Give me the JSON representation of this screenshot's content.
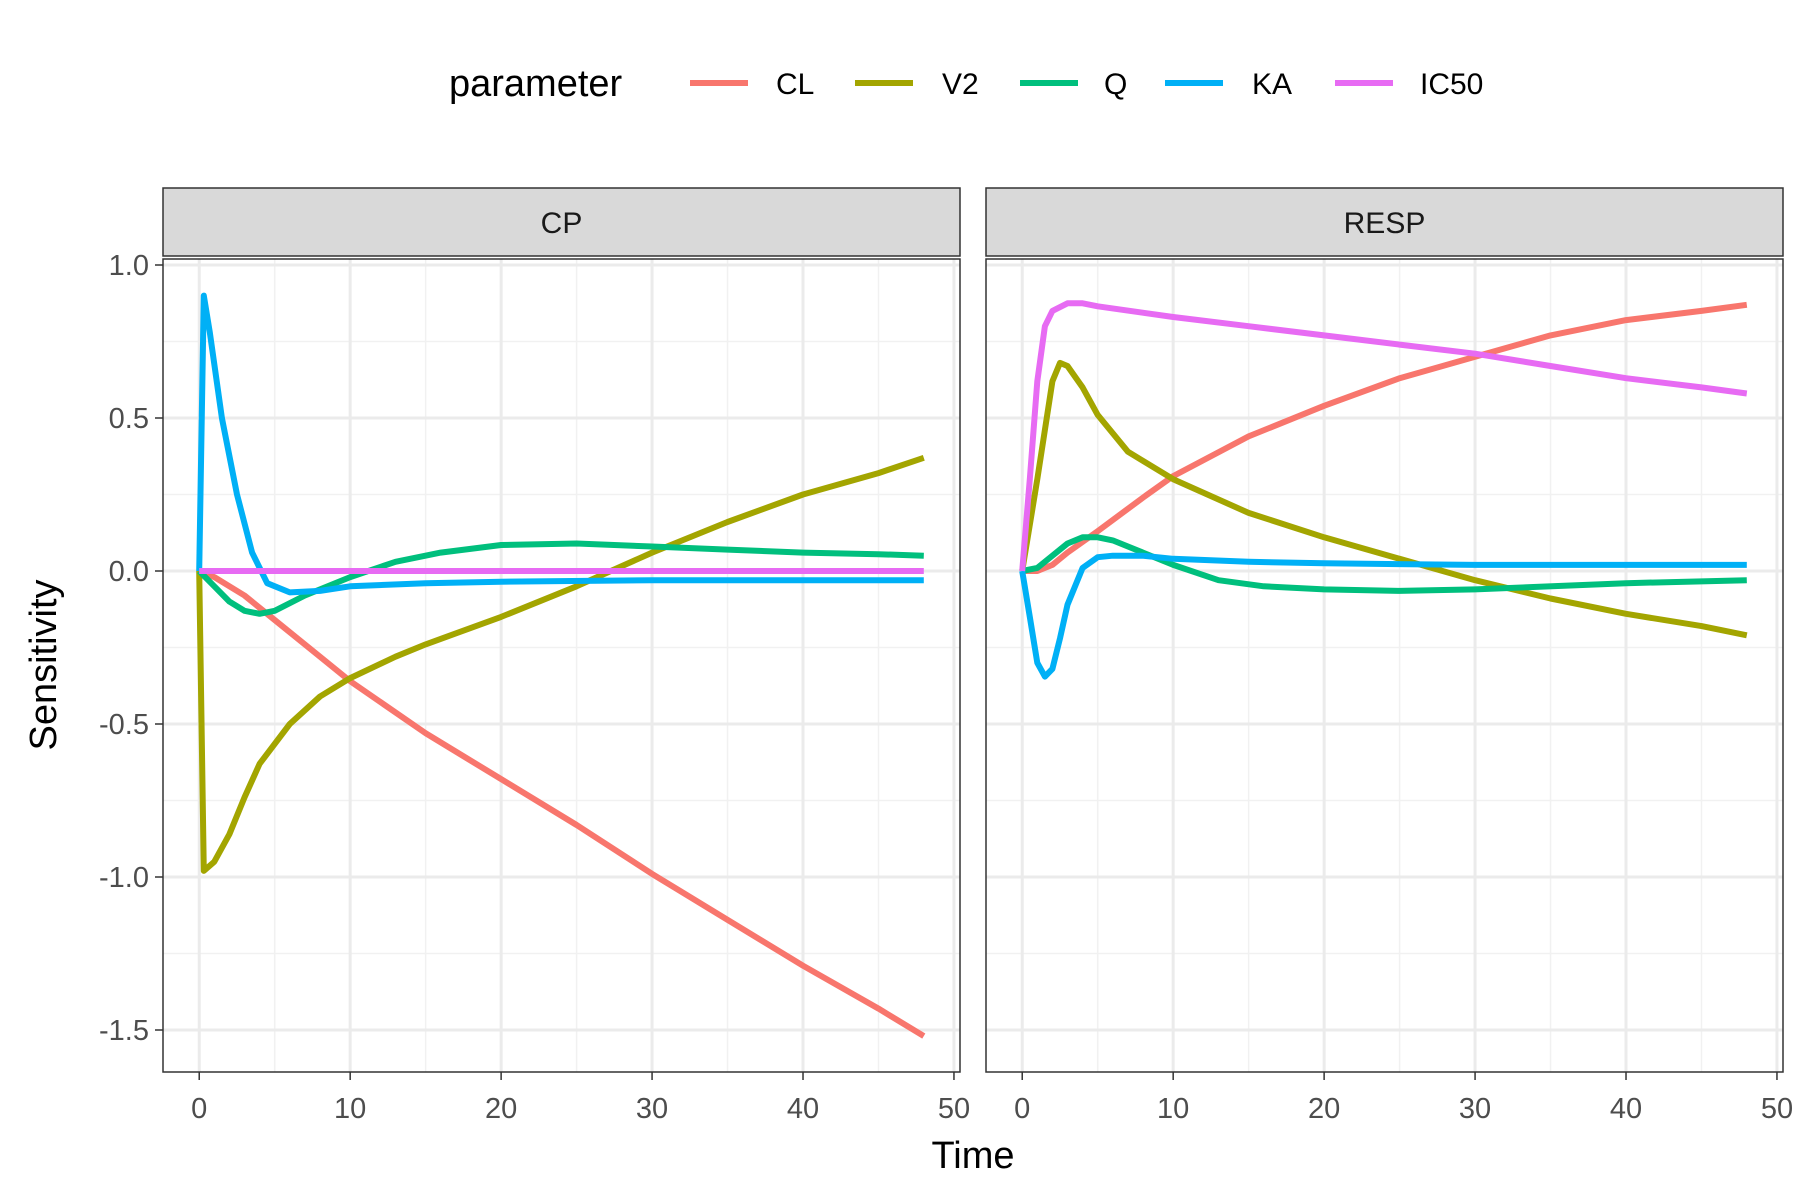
{
  "chart_data": {
    "type": "line",
    "xlabel": "Time",
    "ylabel": "Sensitivity",
    "xlim": [
      -2.4,
      50.4
    ],
    "ylim": [
      -1.63,
      1.0
    ],
    "x_ticks": [
      0,
      10,
      20,
      30,
      40,
      50
    ],
    "x_tick_labels": [
      "0",
      "10",
      "20",
      "30",
      "40",
      "50"
    ],
    "y_ticks": [
      1.0,
      0.5,
      0.0,
      -0.5,
      -1.0,
      -1.5
    ],
    "y_tick_labels": [
      "1.0",
      "0.5",
      "0.0",
      "-0.5",
      "-1.0",
      "-1.5"
    ],
    "grid": true,
    "legend": {
      "title": "parameter",
      "position": "top",
      "entries": [
        {
          "name": "CL",
          "color": "#F8766D"
        },
        {
          "name": "V2",
          "color": "#A3A500"
        },
        {
          "name": "Q",
          "color": "#00BF7D"
        },
        {
          "name": "KA",
          "color": "#00B0F6"
        },
        {
          "name": "IC50",
          "color": "#E76BF3"
        }
      ]
    },
    "panels": [
      {
        "strip": "CP",
        "series": [
          {
            "name": "CL",
            "color": "#F8766D",
            "points": [
              [
                0,
                0
              ],
              [
                1,
                -0.02
              ],
              [
                3,
                -0.08
              ],
              [
                5,
                -0.16
              ],
              [
                8,
                -0.28
              ],
              [
                10,
                -0.36
              ],
              [
                15,
                -0.53
              ],
              [
                20,
                -0.68
              ],
              [
                25,
                -0.83
              ],
              [
                30,
                -0.99
              ],
              [
                35,
                -1.14
              ],
              [
                40,
                -1.29
              ],
              [
                45,
                -1.43
              ],
              [
                48,
                -1.52
              ]
            ]
          },
          {
            "name": "V2",
            "color": "#A3A500",
            "points": [
              [
                0,
                0
              ],
              [
                0.3,
                -0.98
              ],
              [
                1,
                -0.95
              ],
              [
                2,
                -0.86
              ],
              [
                3,
                -0.74
              ],
              [
                4,
                -0.63
              ],
              [
                6,
                -0.5
              ],
              [
                8,
                -0.41
              ],
              [
                10,
                -0.35
              ],
              [
                13,
                -0.28
              ],
              [
                15,
                -0.24
              ],
              [
                20,
                -0.15
              ],
              [
                25,
                -0.05
              ],
              [
                30,
                0.06
              ],
              [
                35,
                0.16
              ],
              [
                40,
                0.25
              ],
              [
                45,
                0.32
              ],
              [
                48,
                0.37
              ]
            ]
          },
          {
            "name": "Q",
            "color": "#00BF7D",
            "points": [
              [
                0,
                0
              ],
              [
                1,
                -0.05
              ],
              [
                2,
                -0.1
              ],
              [
                3,
                -0.13
              ],
              [
                4,
                -0.14
              ],
              [
                5,
                -0.13
              ],
              [
                7,
                -0.08
              ],
              [
                10,
                -0.02
              ],
              [
                13,
                0.03
              ],
              [
                16,
                0.06
              ],
              [
                20,
                0.085
              ],
              [
                25,
                0.09
              ],
              [
                30,
                0.08
              ],
              [
                35,
                0.07
              ],
              [
                40,
                0.06
              ],
              [
                45,
                0.055
              ],
              [
                48,
                0.05
              ]
            ]
          },
          {
            "name": "KA",
            "color": "#00B0F6",
            "points": [
              [
                0,
                0
              ],
              [
                0.3,
                0.9
              ],
              [
                0.7,
                0.78
              ],
              [
                1.5,
                0.5
              ],
              [
                2.5,
                0.25
              ],
              [
                3.5,
                0.06
              ],
              [
                4.5,
                -0.04
              ],
              [
                6,
                -0.07
              ],
              [
                8,
                -0.065
              ],
              [
                10,
                -0.05
              ],
              [
                15,
                -0.04
              ],
              [
                20,
                -0.035
              ],
              [
                30,
                -0.03
              ],
              [
                40,
                -0.03
              ],
              [
                48,
                -0.03
              ]
            ]
          },
          {
            "name": "IC50",
            "color": "#E76BF3",
            "points": [
              [
                0,
                0
              ],
              [
                48,
                0
              ]
            ]
          }
        ]
      },
      {
        "strip": "RESP",
        "series": [
          {
            "name": "CL",
            "color": "#F8766D",
            "points": [
              [
                0,
                0
              ],
              [
                1,
                0
              ],
              [
                2,
                0.02
              ],
              [
                3,
                0.06
              ],
              [
                5,
                0.13
              ],
              [
                8,
                0.24
              ],
              [
                10,
                0.31
              ],
              [
                15,
                0.44
              ],
              [
                20,
                0.54
              ],
              [
                25,
                0.63
              ],
              [
                30,
                0.7
              ],
              [
                35,
                0.77
              ],
              [
                40,
                0.82
              ],
              [
                45,
                0.85
              ],
              [
                48,
                0.87
              ]
            ]
          },
          {
            "name": "V2",
            "color": "#A3A500",
            "points": [
              [
                0,
                0
              ],
              [
                1,
                0.3
              ],
              [
                2,
                0.62
              ],
              [
                2.5,
                0.68
              ],
              [
                3,
                0.67
              ],
              [
                4,
                0.6
              ],
              [
                5,
                0.51
              ],
              [
                7,
                0.39
              ],
              [
                10,
                0.3
              ],
              [
                15,
                0.19
              ],
              [
                20,
                0.11
              ],
              [
                25,
                0.04
              ],
              [
                30,
                -0.03
              ],
              [
                35,
                -0.09
              ],
              [
                40,
                -0.14
              ],
              [
                45,
                -0.18
              ],
              [
                48,
                -0.21
              ]
            ]
          },
          {
            "name": "Q",
            "color": "#00BF7D",
            "points": [
              [
                0,
                0
              ],
              [
                1,
                0.01
              ],
              [
                2,
                0.05
              ],
              [
                3,
                0.09
              ],
              [
                4,
                0.11
              ],
              [
                5,
                0.11
              ],
              [
                6,
                0.1
              ],
              [
                8,
                0.06
              ],
              [
                10,
                0.02
              ],
              [
                13,
                -0.03
              ],
              [
                16,
                -0.05
              ],
              [
                20,
                -0.06
              ],
              [
                25,
                -0.065
              ],
              [
                30,
                -0.06
              ],
              [
                40,
                -0.04
              ],
              [
                48,
                -0.03
              ]
            ]
          },
          {
            "name": "KA",
            "color": "#00B0F6",
            "points": [
              [
                0,
                0
              ],
              [
                0.5,
                -0.15
              ],
              [
                1,
                -0.3
              ],
              [
                1.5,
                -0.345
              ],
              [
                2,
                -0.32
              ],
              [
                2.5,
                -0.22
              ],
              [
                3,
                -0.11
              ],
              [
                4,
                0.01
              ],
              [
                5,
                0.045
              ],
              [
                6,
                0.05
              ],
              [
                8,
                0.05
              ],
              [
                10,
                0.04
              ],
              [
                15,
                0.03
              ],
              [
                20,
                0.025
              ],
              [
                30,
                0.02
              ],
              [
                40,
                0.02
              ],
              [
                48,
                0.02
              ]
            ]
          },
          {
            "name": "IC50",
            "color": "#E76BF3",
            "points": [
              [
                0,
                0
              ],
              [
                0.5,
                0.3
              ],
              [
                1,
                0.62
              ],
              [
                1.5,
                0.8
              ],
              [
                2,
                0.85
              ],
              [
                3,
                0.875
              ],
              [
                4,
                0.875
              ],
              [
                5,
                0.865
              ],
              [
                10,
                0.83
              ],
              [
                15,
                0.8
              ],
              [
                20,
                0.77
              ],
              [
                25,
                0.74
              ],
              [
                30,
                0.71
              ],
              [
                35,
                0.67
              ],
              [
                40,
                0.63
              ],
              [
                45,
                0.6
              ],
              [
                48,
                0.58
              ]
            ]
          }
        ]
      }
    ]
  }
}
